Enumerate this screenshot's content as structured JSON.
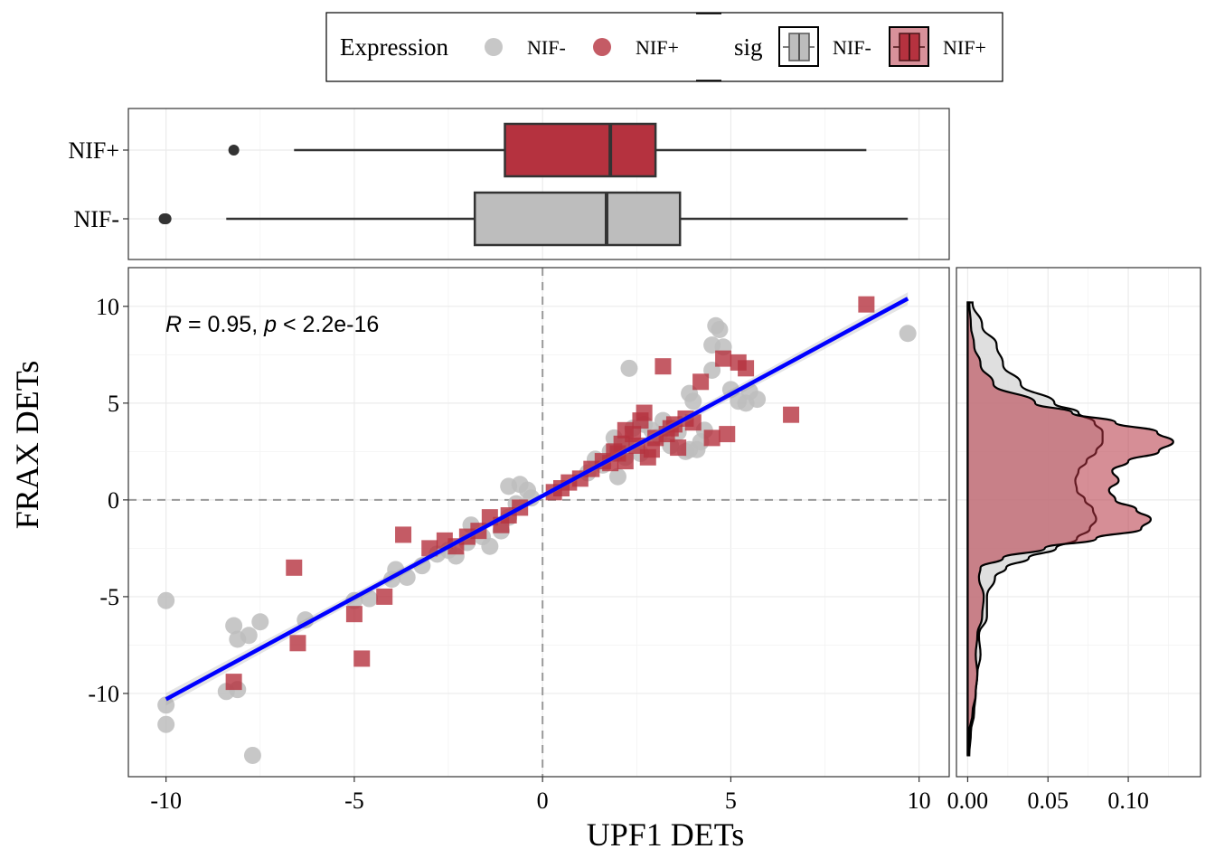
{
  "chart_data": [
    {
      "type": "box",
      "panel": "top-marginal",
      "categories": [
        "NIF+",
        "NIF-"
      ],
      "boxes": [
        {
          "name": "NIF+",
          "min": -6.6,
          "q1": -1.0,
          "median": 1.8,
          "q3": 3.0,
          "max": 8.6,
          "outliers": [
            -8.2
          ],
          "color": "#b5323f"
        },
        {
          "name": "NIF-",
          "min": -8.4,
          "q1": -1.8,
          "median": 1.7,
          "q3": 3.65,
          "max": 9.7,
          "outliers": [
            -10.05,
            -10.0
          ],
          "color": "#bdbdbd"
        }
      ],
      "xlim": [
        -11,
        10.8
      ]
    },
    {
      "type": "scatter",
      "panel": "main",
      "xlabel": "UPF1 DETs",
      "ylabel": "FRAX DETs",
      "xlim": [
        -11,
        10.8
      ],
      "ylim": [
        -14.3,
        12
      ],
      "xticks": [
        -10,
        -5,
        0,
        5,
        10
      ],
      "yticks": [
        10,
        5,
        0,
        -5,
        -10
      ],
      "xtick_labels": [
        "-10",
        "-5",
        "0",
        "5",
        "10"
      ],
      "ytick_labels": [
        "10",
        "5",
        "0",
        "-5",
        "-10"
      ],
      "grid": true,
      "reference_lines": {
        "x": 0,
        "y": 0,
        "style": "dashed"
      },
      "annotation": {
        "prefix_italic": "R",
        "mid": " = 0.95, ",
        "p_italic": "p",
        "suffix": " < 2.2e-16"
      },
      "regression": {
        "x": [
          -10,
          9.7
        ],
        "y": [
          -10.3,
          10.4
        ],
        "color": "#0000ff"
      },
      "series": [
        {
          "name": "NIF-",
          "marker": "circle",
          "color": "#bdbdbd",
          "x": [
            -10,
            -10,
            -10,
            -8.2,
            -8.1,
            -8.1,
            -8.4,
            -7.8,
            -7.5,
            -6.3,
            -7.7,
            -5.0,
            -4.6,
            -4.0,
            -3.9,
            -3.6,
            -3.2,
            -2.8,
            -2.5,
            -2.3,
            -2.0,
            -1.9,
            -1.6,
            -1.4,
            -1.1,
            -0.9,
            -0.6,
            -0.4,
            -0.3,
            -0.7,
            -0.9,
            1.2,
            1.4,
            1.6,
            1.8,
            2.0,
            2.2,
            2.4,
            2.6,
            2.9,
            3.2,
            3.4,
            3.6,
            3.9,
            4.0,
            4.3,
            4.5,
            4.6,
            4.7,
            4.8,
            5.0,
            5.2,
            5.4,
            5.5,
            5.7,
            3.8,
            4.2,
            2.3,
            1.9,
            3.9,
            4.5,
            9.7,
            2.2,
            2.7,
            3.1,
            4.1
          ],
          "y": [
            -10.6,
            -11.6,
            -5.2,
            -6.5,
            -7.2,
            -9.8,
            -9.9,
            -7.0,
            -6.3,
            -6.2,
            -13.2,
            -5.2,
            -5.1,
            -4.1,
            -3.6,
            -4.0,
            -3.4,
            -2.8,
            -2.6,
            -2.9,
            -2.2,
            -1.3,
            -1.9,
            -2.4,
            -1.6,
            -0.9,
            0.8,
            0.5,
            0.1,
            -0.2,
            0.7,
            1.4,
            2.1,
            1.8,
            2.5,
            1.2,
            2.9,
            3.7,
            2.4,
            3.6,
            4.1,
            2.8,
            3.5,
            5.5,
            5.1,
            3.6,
            8.0,
            9.0,
            8.8,
            7.9,
            5.7,
            5.1,
            5.0,
            5.6,
            5.2,
            2.5,
            3.0,
            6.8,
            3.2,
            2.6,
            6.7,
            8.6,
            2.2,
            3.9,
            3.3,
            2.6
          ]
        },
        {
          "name": "NIF+",
          "marker": "square",
          "color": "#b5323f",
          "x": [
            8.6,
            6.6,
            5.2,
            5.4,
            4.8,
            4.2,
            3.8,
            3.2,
            2.7,
            2.2,
            2.0,
            1.8,
            2.5,
            2.9,
            3.0,
            2.4,
            2.1,
            1.6,
            1.3,
            1.0,
            0.7,
            0.5,
            0.3,
            -0.6,
            -0.9,
            -1.1,
            -1.4,
            -1.7,
            -2.0,
            -2.3,
            -2.6,
            -3.0,
            -3.7,
            -4.2,
            -5.0,
            -4.8,
            -6.6,
            -6.5,
            -8.2,
            3.3,
            3.6,
            4.0,
            4.5,
            4.9,
            2.8,
            1.9,
            2.6,
            3.4,
            2.2,
            3.5
          ],
          "y": [
            10.1,
            4.4,
            7.1,
            6.8,
            7.3,
            6.1,
            4.2,
            6.9,
            4.5,
            3.6,
            2.4,
            1.9,
            2.8,
            2.6,
            3.2,
            3.4,
            2.9,
            2.0,
            1.6,
            1.1,
            0.9,
            0.6,
            0.4,
            -0.4,
            -0.8,
            -1.3,
            -0.9,
            -1.6,
            -1.9,
            -2.4,
            -2.1,
            -2.5,
            -1.8,
            -5.0,
            -5.9,
            -8.2,
            -3.5,
            -7.4,
            -9.4,
            3.4,
            2.7,
            4.0,
            3.2,
            3.4,
            2.2,
            2.5,
            4.1,
            3.7,
            2.0,
            3.9
          ]
        }
      ]
    },
    {
      "type": "area",
      "panel": "right-marginal-density",
      "orientation": "horizontal",
      "xticks": [
        0.0,
        0.05,
        0.1
      ],
      "xtick_labels": [
        "0.00",
        "0.05",
        "0.10"
      ],
      "xlim": [
        -0.007,
        0.145
      ],
      "series": [
        {
          "name": "NIF-",
          "color": "#d9d9d9",
          "y": [
            10.2,
            9.0,
            8.0,
            7.0,
            6.0,
            5.0,
            4.5,
            4.0,
            3.5,
            3.0,
            2.5,
            2.0,
            1.5,
            1.0,
            0.5,
            0.0,
            -0.5,
            -1.0,
            -1.5,
            -2.0,
            -2.5,
            -3.0,
            -3.5,
            -4.0,
            -5.0,
            -6.0,
            -7.0,
            -8.0,
            -9.0,
            -10.0,
            -11.0,
            -12.0,
            -13.2
          ],
          "density": [
            0.003,
            0.009,
            0.018,
            0.022,
            0.033,
            0.054,
            0.069,
            0.079,
            0.084,
            0.084,
            0.08,
            0.074,
            0.069,
            0.067,
            0.068,
            0.073,
            0.078,
            0.08,
            0.076,
            0.068,
            0.055,
            0.038,
            0.024,
            0.017,
            0.012,
            0.012,
            0.007,
            0.008,
            0.006,
            0.005,
            0.004,
            0.002,
            0.001
          ]
        },
        {
          "name": "NIF+",
          "color": "#b5323f",
          "y": [
            10.2,
            9.0,
            8.0,
            7.0,
            6.0,
            5.0,
            4.5,
            4.0,
            3.5,
            3.0,
            2.5,
            2.0,
            1.5,
            1.0,
            0.5,
            0.0,
            -0.5,
            -1.0,
            -1.5,
            -2.0,
            -2.5,
            -3.0,
            -3.5,
            -4.0,
            -5.0,
            -6.0,
            -7.0,
            -8.0,
            -9.0,
            -10.0,
            -11.0,
            -12.0,
            -13.2
          ],
          "density": [
            0.001,
            0.002,
            0.004,
            0.008,
            0.016,
            0.042,
            0.065,
            0.092,
            0.118,
            0.128,
            0.119,
            0.1,
            0.09,
            0.094,
            0.088,
            0.092,
            0.105,
            0.114,
            0.108,
            0.08,
            0.048,
            0.022,
            0.008,
            0.007,
            0.01,
            0.009,
            0.006,
            0.005,
            0.006,
            0.005,
            0.003,
            0.001,
            0.0
          ]
        }
      ]
    }
  ],
  "legend": {
    "title_expression": "Expression",
    "expr_items": [
      {
        "label": "NIF-",
        "color": "#bdbdbd"
      },
      {
        "label": "NIF+",
        "color": "#b5323f"
      }
    ],
    "title_sig": "sig",
    "sig_items": [
      {
        "label": "NIF-",
        "color": "#bdbdbd"
      },
      {
        "label": "NIF+",
        "color": "#b5323f"
      }
    ]
  }
}
